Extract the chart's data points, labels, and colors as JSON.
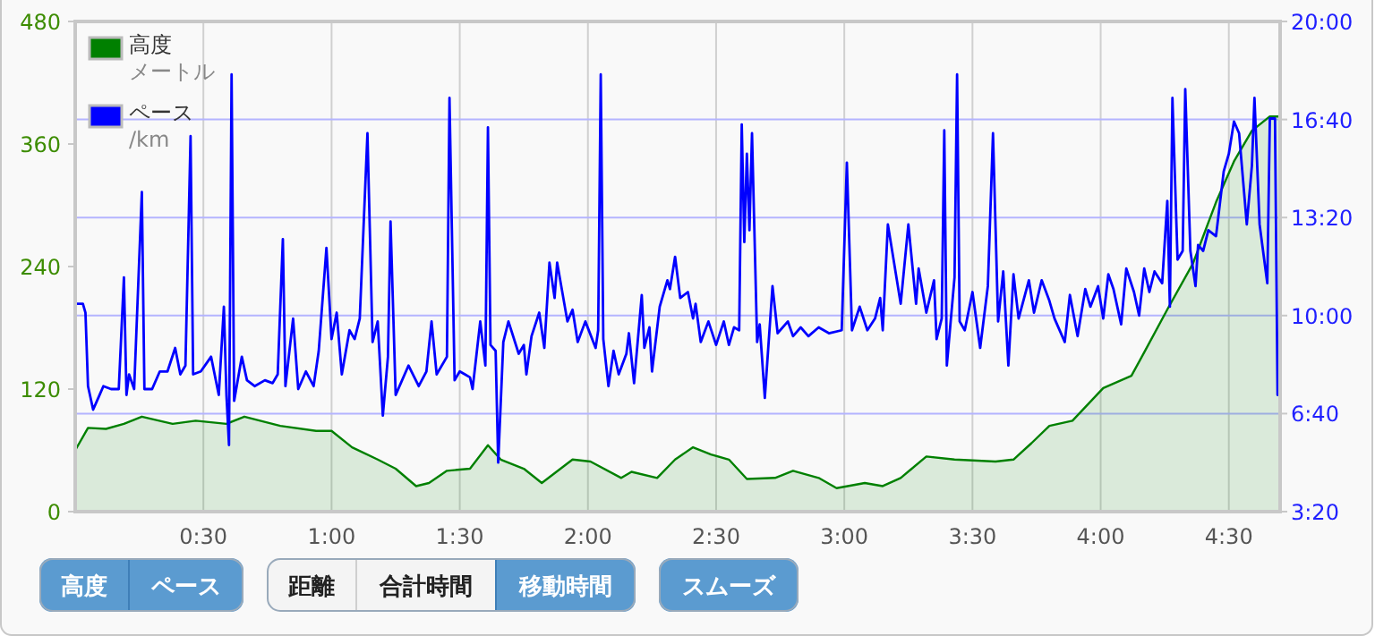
{
  "chart_data": {
    "type": "line",
    "xlim": [
      0,
      4.7
    ],
    "xticks": [
      {
        "value": 0.5,
        "label": "0:30"
      },
      {
        "value": 1,
        "label": "1:00"
      },
      {
        "value": 1.5,
        "label": "1:30"
      },
      {
        "value": 2,
        "label": "2:00"
      },
      {
        "value": 2.5,
        "label": "2:30"
      },
      {
        "value": 3,
        "label": "3:00"
      },
      {
        "value": 3.5,
        "label": "3:30"
      },
      {
        "value": 4,
        "label": "4:00"
      },
      {
        "value": 4.5,
        "label": "4:30"
      }
    ],
    "ylim": [
      0,
      480
    ],
    "yticks": [
      0,
      120,
      240,
      360,
      480
    ],
    "y2lim": [
      3.333333,
      20
    ],
    "y2ticks": [
      {
        "value": 3.333333,
        "label": "3:20"
      },
      {
        "value": 6.666667,
        "label": "6:40"
      },
      {
        "value": 10,
        "label": "10:00"
      },
      {
        "value": 13.333333,
        "label": "13:20"
      },
      {
        "value": 16.666667,
        "label": "16:40"
      },
      {
        "value": 20,
        "label": "20:00"
      }
    ],
    "grid": true,
    "legend": "top left",
    "series": [
      {
        "name": "高度メートル",
        "type": "area",
        "color": "#008000",
        "x": [
          0,
          0.05,
          0.12,
          0.19,
          0.26,
          0.38,
          0.47,
          0.59,
          0.66,
          0.8,
          0.94,
          1.0,
          1.08,
          1.18,
          1.25,
          1.33,
          1.38,
          1.45,
          1.54,
          1.61,
          1.66,
          1.75,
          1.82,
          1.94,
          2.01,
          2.13,
          2.17,
          2.27,
          2.34,
          2.41,
          2.48,
          2.55,
          2.62,
          2.73,
          2.8,
          2.9,
          2.97,
          3.08,
          3.15,
          3.22,
          3.32,
          3.43,
          3.59,
          3.66,
          3.73,
          3.8,
          3.89,
          4.01,
          4.12,
          4.17,
          4.26,
          4.36,
          4.45,
          4.52,
          4.59,
          4.66,
          4.7
        ],
        "values": [
          60,
          82,
          81,
          86,
          93,
          86,
          89,
          86,
          93,
          84,
          79,
          79,
          63,
          51,
          42,
          25,
          28,
          40,
          42,
          65,
          51,
          42,
          28,
          51,
          49,
          33,
          39,
          33,
          51,
          63,
          56,
          51,
          32,
          33,
          40,
          33,
          23,
          28,
          25,
          33,
          54,
          51,
          49,
          51,
          67,
          84,
          89,
          121,
          133,
          156,
          198,
          243,
          303,
          343,
          373,
          387,
          387
        ]
      },
      {
        "name": "ペース\n/km",
        "axis": "y2",
        "color": "#0000ff",
        "x": [
          0,
          0.03,
          0.04,
          0.05,
          0.07,
          0.09,
          0.11,
          0.14,
          0.17,
          0.19,
          0.2,
          0.21,
          0.23,
          0.26,
          0.27,
          0.3,
          0.33,
          0.36,
          0.39,
          0.41,
          0.43,
          0.45,
          0.46,
          0.49,
          0.53,
          0.56,
          0.58,
          0.59,
          0.6,
          0.61,
          0.62,
          0.65,
          0.67,
          0.7,
          0.74,
          0.77,
          0.79,
          0.81,
          0.82,
          0.85,
          0.87,
          0.9,
          0.93,
          0.95,
          0.98,
          1.0,
          1.02,
          1.04,
          1.07,
          1.09,
          1.11,
          1.14,
          1.16,
          1.18,
          1.2,
          1.22,
          1.23,
          1.25,
          1.3,
          1.34,
          1.37,
          1.39,
          1.41,
          1.45,
          1.46,
          1.48,
          1.5,
          1.52,
          1.54,
          1.55,
          1.58,
          1.6,
          1.61,
          1.62,
          1.64,
          1.65,
          1.67,
          1.69,
          1.73,
          1.75,
          1.76,
          1.78,
          1.81,
          1.83,
          1.85,
          1.87,
          1.88,
          1.92,
          1.94,
          1.96,
          1.99,
          2.03,
          2.04,
          2.05,
          2.06,
          2.08,
          2.1,
          2.12,
          2.15,
          2.16,
          2.18,
          2.21,
          2.22,
          2.24,
          2.25,
          2.28,
          2.31,
          2.32,
          2.34,
          2.36,
          2.39,
          2.41,
          2.42,
          2.44,
          2.47,
          2.5,
          2.53,
          2.55,
          2.57,
          2.59,
          2.6,
          2.61,
          2.62,
          2.63,
          2.64,
          2.66,
          2.67,
          2.69,
          2.72,
          2.74,
          2.78,
          2.8,
          2.83,
          2.86,
          2.9,
          2.94,
          2.99,
          3.01,
          3.03,
          3.06,
          3.09,
          3.12,
          3.14,
          3.15,
          3.17,
          3.22,
          3.25,
          3.28,
          3.29,
          3.32,
          3.35,
          3.36,
          3.38,
          3.39,
          3.4,
          3.43,
          3.44,
          3.45,
          3.47,
          3.5,
          3.53,
          3.56,
          3.58,
          3.6,
          3.62,
          3.64,
          3.66,
          3.68,
          3.72,
          3.74,
          3.77,
          3.8,
          3.82,
          3.86,
          3.88,
          3.91,
          3.94,
          3.96,
          3.99,
          4.01,
          4.03,
          4.05,
          4.08,
          4.1,
          4.13,
          4.15,
          4.17,
          4.19,
          4.21,
          4.24,
          4.26,
          4.27,
          4.28,
          4.3,
          4.32,
          4.33,
          4.35,
          4.37,
          4.38,
          4.4,
          4.42,
          4.45,
          4.48,
          4.5,
          4.52,
          4.54,
          4.57,
          4.59,
          4.6,
          4.62,
          4.65,
          4.66,
          4.68,
          4.69,
          4.7
        ],
        "values": [
          10.4,
          10.4,
          10.1,
          7.6,
          6.8,
          7.2,
          7.6,
          7.5,
          7.5,
          11.3,
          7.3,
          8.0,
          7.5,
          14.2,
          7.5,
          7.5,
          8.1,
          8.1,
          8.9,
          8.0,
          8.3,
          16.1,
          8.0,
          8.1,
          8.6,
          7.3,
          10.3,
          7.3,
          5.6,
          18.2,
          7.1,
          8.6,
          7.8,
          7.6,
          7.8,
          7.7,
          8.0,
          12.6,
          7.6,
          9.9,
          7.5,
          8.1,
          7.6,
          8.8,
          12.3,
          9.2,
          10.1,
          8.0,
          9.5,
          9.2,
          9.9,
          16.2,
          9.1,
          9.8,
          6.6,
          8.6,
          13.2,
          7.3,
          8.3,
          7.6,
          8.1,
          9.8,
          8.0,
          8.6,
          17.4,
          7.8,
          8.1,
          8.0,
          7.9,
          7.5,
          9.8,
          8.3,
          16.4,
          9.0,
          8.8,
          5.0,
          9.1,
          9.8,
          8.7,
          9.0,
          8.0,
          9.3,
          10.1,
          8.9,
          11.8,
          10.6,
          11.8,
          9.8,
          10.2,
          9.1,
          9.8,
          8.9,
          9.5,
          18.2,
          9.2,
          7.6,
          8.8,
          8.0,
          8.7,
          9.4,
          7.7,
          10.7,
          8.9,
          9.6,
          8.1,
          10.3,
          11.2,
          10.9,
          12.0,
          10.6,
          10.8,
          9.9,
          10.4,
          9.1,
          9.8,
          9.0,
          9.8,
          9.0,
          9.6,
          9.5,
          16.5,
          12.5,
          15.5,
          12.9,
          16.2,
          9.1,
          9.7,
          7.2,
          11.0,
          9.4,
          9.8,
          9.3,
          9.6,
          9.3,
          9.6,
          9.4,
          9.5,
          15.2,
          9.5,
          10.3,
          9.5,
          9.9,
          10.6,
          9.5,
          13.1,
          10.4,
          13.1,
          10.4,
          11.6,
          10.1,
          11.2,
          9.2,
          9.9,
          16.3,
          8.3,
          11.3,
          18.2,
          9.8,
          9.5,
          10.8,
          8.9,
          11.0,
          16.2,
          9.8,
          11.5,
          8.3,
          11.4,
          9.9,
          11.2,
          10.1,
          11.2,
          10.5,
          9.9,
          9.1,
          10.7,
          9.3,
          10.9,
          10.3,
          11.0,
          9.9,
          11.4,
          10.9,
          9.7,
          11.6,
          10.8,
          10.0,
          11.6,
          10.8,
          11.5,
          11.1,
          13.9,
          10.3,
          17.4,
          11.9,
          12.2,
          17.7,
          12.2,
          11.0,
          12.4,
          12.2,
          12.9,
          12.7,
          14.9,
          15.5,
          16.6,
          16.2,
          13.1,
          15.1,
          17.4,
          13.1,
          11.1,
          16.7,
          16.7,
          7.3,
          7.8
        ]
      }
    ],
    "annotations": [
      "高度",
      "ペース",
      "距離",
      "合計時間",
      "移動時間",
      "スムーズ"
    ]
  }
}
